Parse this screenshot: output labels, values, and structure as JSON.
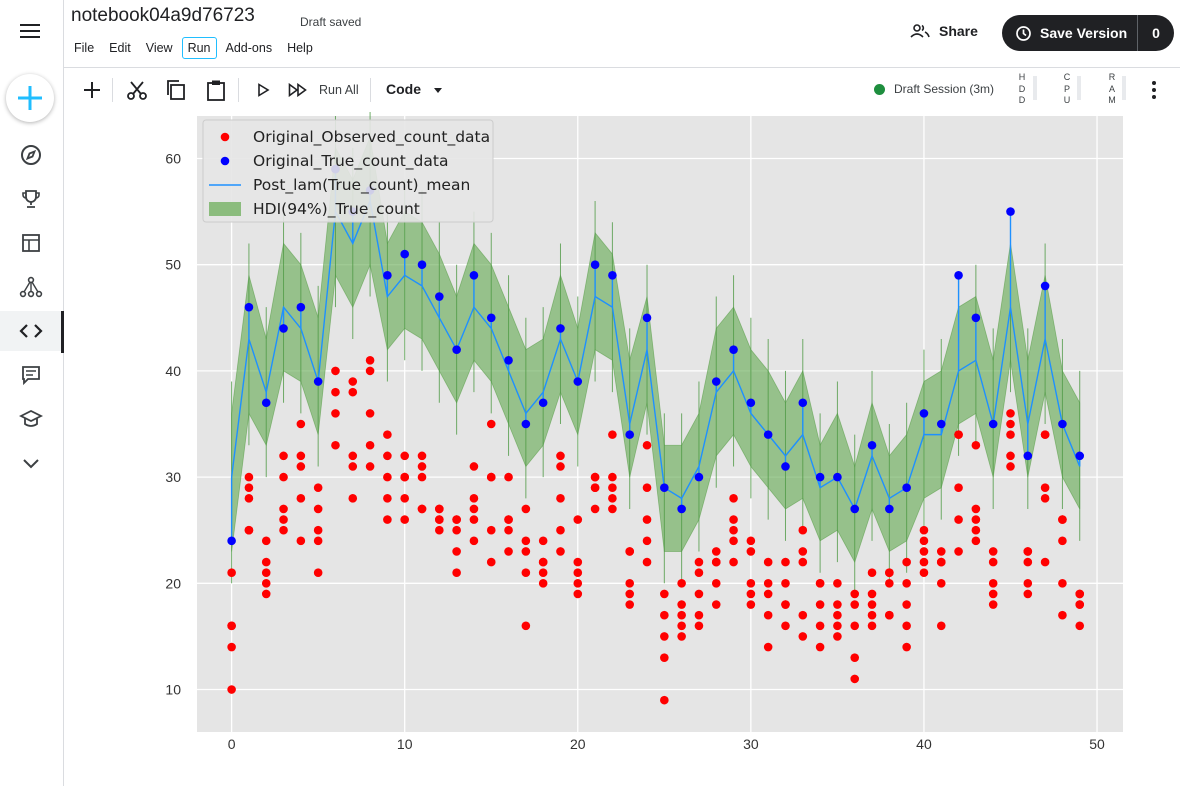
{
  "notebook": {
    "title": "notebook04a9d76723",
    "status": "Draft saved"
  },
  "menu": [
    "File",
    "Edit",
    "View",
    "Run",
    "Add-ons",
    "Help"
  ],
  "actions": {
    "share": "Share",
    "save_version": "Save Version",
    "version_count": "0"
  },
  "toolbar": {
    "run_all": "Run All",
    "cell_type": "Code"
  },
  "session": {
    "label": "Draft Session (3m)",
    "hdd": "HDD",
    "cpu": "CPU",
    "ram": "RAM"
  },
  "rail_icons": [
    "compass-icon",
    "trophy-icon",
    "table-icon",
    "models-icon",
    "code-icon",
    "comments-icon",
    "learn-icon",
    "chevron-down-icon"
  ],
  "chart_data": {
    "type": "scatter",
    "xlim": [
      -2,
      51.5
    ],
    "ylim": [
      6,
      64
    ],
    "xticks": [
      0,
      10,
      20,
      30,
      40,
      50
    ],
    "yticks": [
      10,
      20,
      30,
      40,
      50,
      60
    ],
    "grid": true,
    "legend_position": "top-left",
    "legend": [
      "Original_Observed_count_data",
      "Original_True_count_data",
      "Post_lam(True_count)_mean",
      "HDI(94%)_True_count"
    ],
    "colors": {
      "observed": "#ff0000",
      "true": "#0000ff",
      "mean": "#1e90ff",
      "hdi": "#6cad5a",
      "background": "#e5e5e5"
    },
    "x": [
      0,
      1,
      2,
      3,
      4,
      5,
      6,
      7,
      8,
      9,
      10,
      11,
      12,
      13,
      14,
      15,
      16,
      17,
      18,
      19,
      20,
      21,
      22,
      23,
      24,
      25,
      26,
      27,
      28,
      29,
      30,
      31,
      32,
      33,
      34,
      35,
      36,
      37,
      38,
      39,
      40,
      41,
      42,
      43,
      44,
      45,
      46,
      47,
      48,
      49
    ],
    "true_count": [
      24,
      46,
      37,
      44,
      46,
      39,
      59,
      55,
      57,
      49,
      51,
      50,
      47,
      42,
      49,
      45,
      41,
      35,
      37,
      44,
      39,
      50,
      49,
      34,
      45,
      29,
      27,
      30,
      39,
      42,
      37,
      34,
      31,
      37,
      30,
      30,
      27,
      33,
      27,
      29,
      36,
      35,
      49,
      45,
      35,
      55,
      32,
      48,
      35,
      32
    ],
    "observed_count": [
      [
        10,
        14,
        16,
        16,
        21
      ],
      [
        25,
        25,
        28,
        29,
        30
      ],
      [
        19,
        20,
        21,
        22,
        24
      ],
      [
        25,
        26,
        27,
        30,
        32
      ],
      [
        24,
        28,
        31,
        32,
        35
      ],
      [
        21,
        24,
        25,
        27,
        29
      ],
      [
        33,
        36,
        38,
        40,
        59
      ],
      [
        28,
        31,
        32,
        38,
        39
      ],
      [
        31,
        33,
        36,
        40,
        41
      ],
      [
        26,
        28,
        30,
        32,
        34
      ],
      [
        26,
        28,
        30,
        30,
        32
      ],
      [
        27,
        27,
        30,
        31,
        32
      ],
      [
        25,
        26,
        26,
        27,
        27
      ],
      [
        21,
        23,
        25,
        26,
        26
      ],
      [
        24,
        26,
        27,
        28,
        31
      ],
      [
        22,
        25,
        30,
        30,
        35
      ],
      [
        23,
        25,
        26,
        26,
        30
      ],
      [
        16,
        21,
        23,
        24,
        27
      ],
      [
        20,
        21,
        22,
        22,
        24
      ],
      [
        23,
        25,
        28,
        31,
        32
      ],
      [
        19,
        20,
        21,
        22,
        26
      ],
      [
        27,
        29,
        29,
        30,
        30
      ],
      [
        27,
        28,
        29,
        30,
        34
      ],
      [
        18,
        19,
        20,
        23,
        23
      ],
      [
        22,
        24,
        26,
        29,
        33
      ],
      [
        9,
        13,
        15,
        17,
        19
      ],
      [
        15,
        16,
        17,
        18,
        20
      ],
      [
        16,
        17,
        19,
        21,
        22
      ],
      [
        18,
        20,
        22,
        22,
        23
      ],
      [
        22,
        24,
        25,
        26,
        28
      ],
      [
        18,
        19,
        20,
        23,
        24
      ],
      [
        14,
        17,
        19,
        20,
        22
      ],
      [
        16,
        18,
        18,
        20,
        22
      ],
      [
        15,
        17,
        22,
        23,
        25
      ],
      [
        14,
        16,
        18,
        20,
        20
      ],
      [
        15,
        16,
        17,
        18,
        20
      ],
      [
        11,
        13,
        16,
        18,
        19
      ],
      [
        16,
        17,
        18,
        19,
        21
      ],
      [
        17,
        17,
        20,
        21,
        21
      ],
      [
        14,
        16,
        18,
        20,
        22
      ],
      [
        21,
        22,
        23,
        24,
        25
      ],
      [
        16,
        20,
        22,
        22,
        23
      ],
      [
        23,
        26,
        29,
        34,
        34
      ],
      [
        24,
        25,
        26,
        27,
        33
      ],
      [
        18,
        19,
        20,
        22,
        23
      ],
      [
        31,
        32,
        34,
        35,
        36
      ],
      [
        19,
        20,
        22,
        23,
        23
      ],
      [
        22,
        28,
        29,
        34,
        34
      ],
      [
        17,
        20,
        24,
        26,
        26
      ],
      [
        16,
        18,
        18,
        19,
        19
      ]
    ],
    "posterior_mean": [
      30,
      43,
      38,
      46,
      44,
      39,
      55,
      52,
      56,
      47,
      49,
      48,
      45,
      42,
      46,
      44,
      40,
      36,
      38,
      43,
      39,
      47,
      46,
      35,
      42,
      29,
      28,
      31,
      38,
      40,
      36,
      34,
      32,
      34,
      29,
      30,
      27,
      32,
      28,
      29,
      34,
      34,
      40,
      41,
      35,
      46,
      35,
      43,
      35,
      31
    ],
    "hdi_low": [
      23,
      36,
      33,
      40,
      39,
      34,
      49,
      46,
      50,
      42,
      44,
      43,
      40,
      37,
      41,
      39,
      35,
      31,
      33,
      38,
      34,
      42,
      41,
      30,
      37,
      23,
      23,
      26,
      32,
      34,
      31,
      29,
      27,
      28,
      24,
      25,
      22,
      27,
      23,
      24,
      28,
      29,
      35,
      36,
      30,
      41,
      30,
      38,
      30,
      27
    ],
    "hdi_high": [
      36,
      49,
      43,
      52,
      50,
      45,
      61,
      58,
      62,
      52,
      55,
      54,
      51,
      47,
      52,
      50,
      46,
      42,
      43,
      49,
      44,
      53,
      51,
      41,
      47,
      33,
      33,
      36,
      44,
      46,
      42,
      40,
      37,
      40,
      33,
      36,
      31,
      37,
      32,
      34,
      39,
      40,
      46,
      47,
      41,
      52,
      41,
      49,
      40,
      37
    ]
  }
}
